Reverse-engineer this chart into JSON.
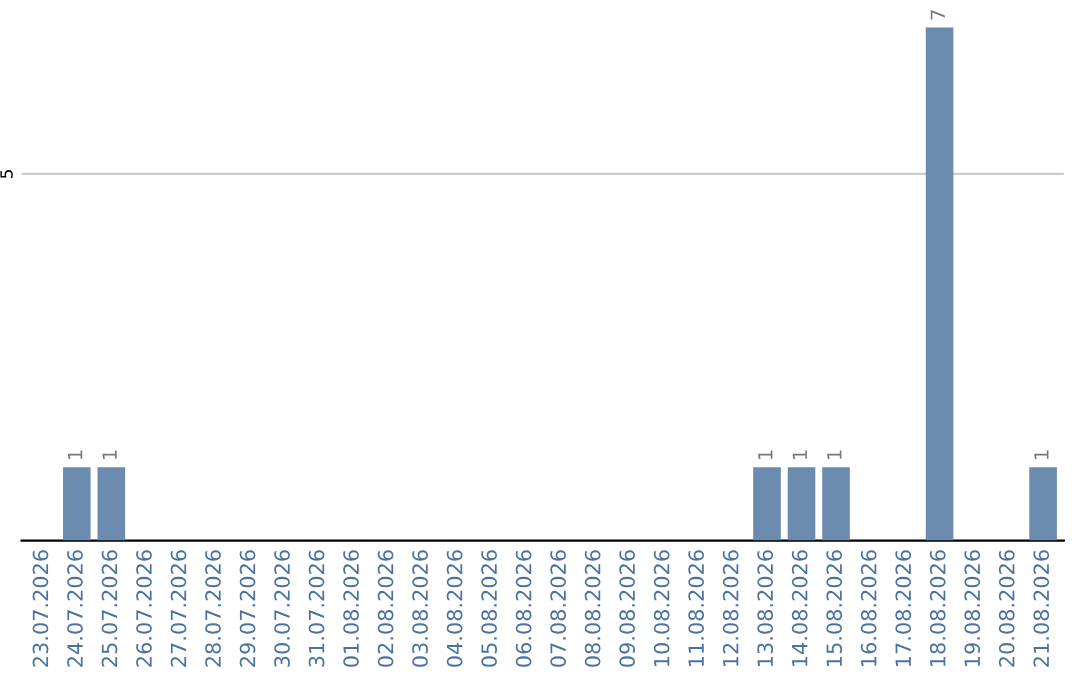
{
  "chart_data": {
    "type": "bar",
    "categories": [
      "23.07.2026",
      "24.07.2026",
      "25.07.2026",
      "26.07.2026",
      "27.07.2026",
      "28.07.2026",
      "29.07.2026",
      "30.07.2026",
      "31.07.2026",
      "01.08.2026",
      "02.08.2026",
      "03.08.2026",
      "04.08.2026",
      "05.08.2026",
      "06.08.2026",
      "07.08.2026",
      "08.08.2026",
      "09.08.2026",
      "10.08.2026",
      "11.08.2026",
      "12.08.2026",
      "13.08.2026",
      "14.08.2026",
      "15.08.2026",
      "16.08.2026",
      "17.08.2026",
      "18.08.2026",
      "19.08.2026",
      "20.08.2026",
      "21.08.2026"
    ],
    "values": [
      0,
      1,
      1,
      0,
      0,
      0,
      0,
      0,
      0,
      0,
      0,
      0,
      0,
      0,
      0,
      0,
      0,
      0,
      0,
      0,
      0,
      1,
      1,
      1,
      0,
      0,
      7,
      0,
      0,
      1
    ],
    "value_labels": [
      null,
      "1",
      "1",
      null,
      null,
      null,
      null,
      null,
      null,
      null,
      null,
      null,
      null,
      null,
      null,
      null,
      null,
      null,
      null,
      null,
      null,
      "1",
      "1",
      "1",
      null,
      null,
      "7",
      null,
      null,
      "1"
    ],
    "color": "#6b8caf",
    "ylim": [
      0,
      7.0
    ],
    "yticks": [
      5
    ],
    "grid": "y"
  }
}
